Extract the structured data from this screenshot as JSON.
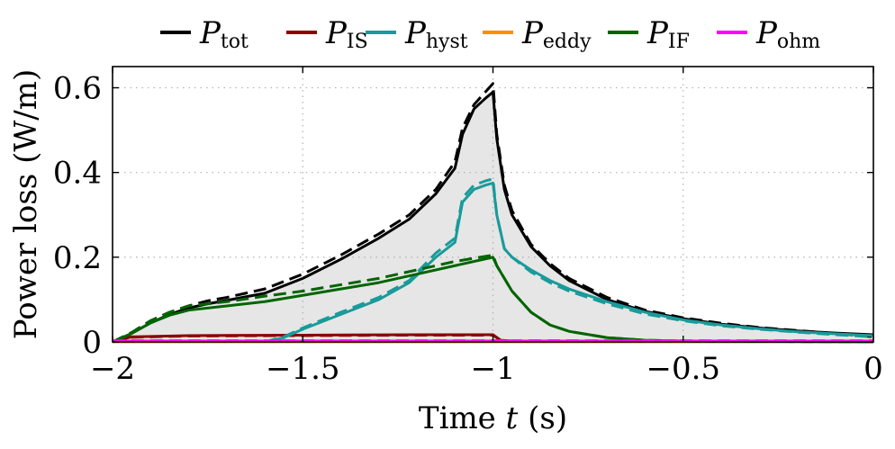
{
  "chart_data": {
    "type": "line",
    "xlabel_prefix": "Time ",
    "xlabel_var": "t",
    "xlabel_suffix": " (s)",
    "ylabel": "Power loss (W/m)",
    "xlim": [
      -2,
      0
    ],
    "ylim": [
      0,
      0.65
    ],
    "xticks": [
      -2,
      -1.5,
      -1,
      -0.5,
      0
    ],
    "xtick_labels": [
      "−2",
      "−1.5",
      "−1",
      "−0.5",
      "0"
    ],
    "yticks": [
      0,
      0.2,
      0.4,
      0.6
    ],
    "ytick_labels": [
      "0",
      "0.2",
      "0.4",
      "0.6"
    ],
    "grid": true,
    "legend_position": "top, outside",
    "fill_under": "tot",
    "fill_color": "#e6e6e6",
    "legend": [
      {
        "key": "tot",
        "main": "P",
        "sub": "tot",
        "color": "#000000"
      },
      {
        "key": "IS",
        "main": "P",
        "sub": "IS",
        "color": "#8b0000"
      },
      {
        "key": "hyst",
        "main": "P",
        "sub": "hyst",
        "color": "#1a9a9a"
      },
      {
        "key": "eddy",
        "main": "P",
        "sub": "eddy",
        "color": "#ff8c00"
      },
      {
        "key": "IF",
        "main": "P",
        "sub": "IF",
        "color": "#006400"
      },
      {
        "key": "ohm",
        "main": "P",
        "sub": "ohm",
        "color": "#ff00ff"
      }
    ],
    "series": [
      {
        "key": "tot",
        "style": "solid",
        "x": [
          -2,
          -1.95,
          -1.9,
          -1.85,
          -1.8,
          -1.75,
          -1.7,
          -1.6,
          -1.5,
          -1.4,
          -1.3,
          -1.22,
          -1.15,
          -1.1,
          -1.08,
          -1.05,
          -1.02,
          -1.0,
          -0.99,
          -0.97,
          -0.95,
          -0.9,
          -0.85,
          -0.8,
          -0.7,
          -0.6,
          -0.5,
          -0.4,
          -0.3,
          -0.2,
          -0.1,
          0
        ],
        "y": [
          0,
          0.02,
          0.045,
          0.065,
          0.08,
          0.09,
          0.098,
          0.115,
          0.15,
          0.195,
          0.245,
          0.29,
          0.35,
          0.41,
          0.49,
          0.55,
          0.575,
          0.59,
          0.48,
          0.36,
          0.3,
          0.225,
          0.18,
          0.145,
          0.1,
          0.072,
          0.055,
          0.042,
          0.033,
          0.026,
          0.021,
          0.017
        ]
      },
      {
        "key": "tot",
        "style": "dashed",
        "x": [
          -2,
          -1.95,
          -1.9,
          -1.85,
          -1.8,
          -1.75,
          -1.7,
          -1.6,
          -1.5,
          -1.4,
          -1.3,
          -1.22,
          -1.15,
          -1.1,
          -1.08,
          -1.05,
          -1.02,
          -1.0,
          -0.99,
          -0.97,
          -0.95,
          -0.9,
          -0.85,
          -0.8,
          -0.7,
          -0.6,
          -0.5,
          -0.4,
          -0.3,
          -0.2,
          -0.1,
          0
        ],
        "y": [
          0,
          0.022,
          0.05,
          0.07,
          0.085,
          0.097,
          0.105,
          0.125,
          0.16,
          0.205,
          0.255,
          0.3,
          0.36,
          0.425,
          0.505,
          0.56,
          0.59,
          0.61,
          0.49,
          0.37,
          0.31,
          0.23,
          0.185,
          0.15,
          0.105,
          0.075,
          0.057,
          0.044,
          0.034,
          0.027,
          0.02,
          0.012
        ]
      },
      {
        "key": "IS",
        "style": "solid",
        "x": [
          -2,
          -1.95,
          -1.8,
          -1.5,
          -1.2,
          -1.0,
          -0.98,
          -0.95,
          -0.5,
          0
        ],
        "y": [
          0,
          0.012,
          0.015,
          0.016,
          0.017,
          0.017,
          0.004,
          0.002,
          0.001,
          0.001
        ]
      },
      {
        "key": "IS",
        "style": "dashed",
        "x": [
          -2,
          -1.95,
          -1.8,
          -1.5,
          -1.2,
          -1.0,
          -0.98,
          -0.95,
          -0.5,
          0
        ],
        "y": [
          0,
          0.011,
          0.014,
          0.015,
          0.016,
          0.016,
          0.004,
          0.002,
          0.001,
          0.001
        ]
      },
      {
        "key": "hyst",
        "style": "solid",
        "x": [
          -1.6,
          -1.55,
          -1.5,
          -1.4,
          -1.3,
          -1.22,
          -1.15,
          -1.1,
          -1.08,
          -1.05,
          -1.02,
          -1.0,
          -0.99,
          -0.97,
          -0.95,
          -0.9,
          -0.85,
          -0.8,
          -0.7,
          -0.6,
          -0.5,
          -0.4,
          -0.3,
          -0.2,
          -0.1,
          0
        ],
        "y": [
          0,
          0.01,
          0.03,
          0.065,
          0.1,
          0.14,
          0.2,
          0.235,
          0.33,
          0.36,
          0.37,
          0.375,
          0.3,
          0.22,
          0.2,
          0.17,
          0.145,
          0.125,
          0.095,
          0.07,
          0.052,
          0.04,
          0.031,
          0.024,
          0.019,
          0.015
        ]
      },
      {
        "key": "hyst",
        "style": "dashed",
        "x": [
          -1.6,
          -1.55,
          -1.5,
          -1.4,
          -1.3,
          -1.22,
          -1.15,
          -1.1,
          -1.08,
          -1.05,
          -1.02,
          -1.0,
          -0.99,
          -0.97,
          -0.95,
          -0.9,
          -0.85,
          -0.8,
          -0.7,
          -0.6,
          -0.5,
          -0.4,
          -0.3,
          -0.2,
          -0.1,
          0
        ],
        "y": [
          0,
          0.012,
          0.033,
          0.07,
          0.105,
          0.145,
          0.21,
          0.245,
          0.34,
          0.37,
          0.38,
          0.385,
          0.3,
          0.22,
          0.2,
          0.165,
          0.14,
          0.12,
          0.09,
          0.066,
          0.05,
          0.038,
          0.03,
          0.023,
          0.017,
          0.012
        ]
      },
      {
        "key": "eddy",
        "style": "solid",
        "x": [
          -2,
          0
        ],
        "y": [
          0,
          0
        ]
      },
      {
        "key": "IF",
        "style": "solid",
        "x": [
          -2,
          -1.95,
          -1.9,
          -1.85,
          -1.8,
          -1.7,
          -1.6,
          -1.5,
          -1.4,
          -1.3,
          -1.2,
          -1.1,
          -1.0,
          -0.99,
          -0.97,
          -0.95,
          -0.9,
          -0.85,
          -0.8,
          -0.7,
          -0.6,
          -0.5,
          0
        ],
        "y": [
          0,
          0.02,
          0.045,
          0.063,
          0.075,
          0.085,
          0.095,
          0.11,
          0.125,
          0.14,
          0.16,
          0.18,
          0.2,
          0.18,
          0.15,
          0.12,
          0.07,
          0.04,
          0.025,
          0.01,
          0.004,
          0.002,
          0.0
        ]
      },
      {
        "key": "IF",
        "style": "dashed",
        "x": [
          -2,
          -1.95,
          -1.9,
          -1.85,
          -1.8,
          -1.7,
          -1.6,
          -1.5,
          -1.4,
          -1.3,
          -1.2,
          -1.1,
          -1.0,
          -0.99,
          -0.97,
          -0.95,
          -0.9,
          -0.85,
          -0.8,
          -0.7,
          -0.6,
          -0.5,
          0
        ],
        "y": [
          0,
          0.022,
          0.05,
          0.07,
          0.085,
          0.095,
          0.108,
          0.12,
          0.135,
          0.15,
          0.17,
          0.19,
          0.205,
          0.18,
          0.15,
          0.12,
          0.07,
          0.04,
          0.025,
          0.01,
          0.004,
          0.002,
          0.0
        ]
      },
      {
        "key": "ohm",
        "style": "solid",
        "x": [
          -2,
          0
        ],
        "y": [
          0.002,
          0.002
        ]
      },
      {
        "key": "ohm",
        "style": "dashed",
        "x": [
          -2,
          0
        ],
        "y": [
          0.003,
          0.003
        ]
      }
    ]
  }
}
